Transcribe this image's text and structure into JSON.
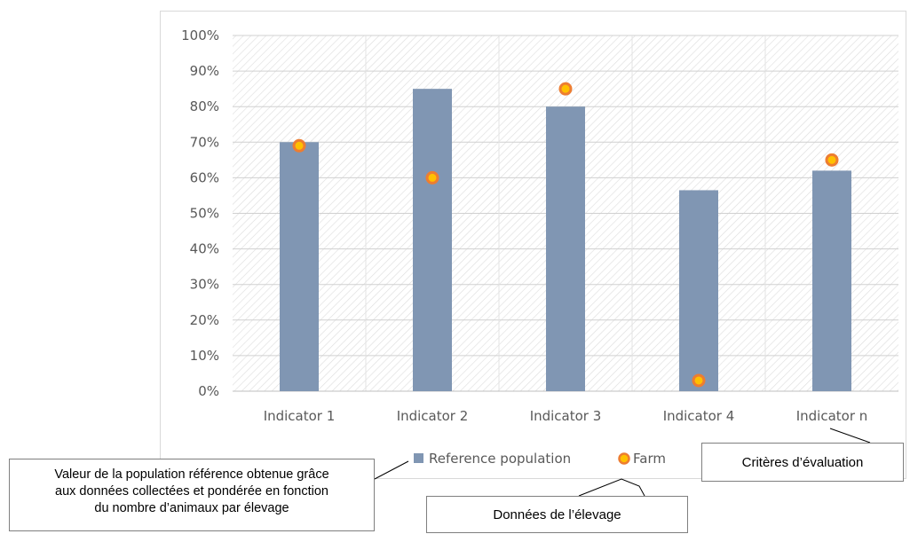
{
  "chart_data": {
    "type": "bar",
    "categories": [
      "Indicator 1",
      "Indicator 2",
      "Indicator 3",
      "Indicator 4",
      "Indicator n"
    ],
    "series": [
      {
        "name": "Reference population",
        "type": "bar",
        "color": "#8096b3",
        "values": [
          70,
          85,
          80,
          56.5,
          62
        ]
      },
      {
        "name": "Farm",
        "type": "scatter",
        "color": "#ed7d31",
        "values": [
          69,
          60,
          85,
          3,
          65
        ]
      }
    ],
    "y_ticks": [
      "0%",
      "10%",
      "20%",
      "30%",
      "40%",
      "50%",
      "60%",
      "70%",
      "80%",
      "90%",
      "100%"
    ],
    "ylim": [
      0,
      100
    ],
    "grid": true,
    "legend": "bottom"
  },
  "callouts": {
    "reference": [
      "Valeur de la population référence obtenue grâce",
      "aux données collectées et pondérée en fonction",
      "du nombre d’animaux par élevage"
    ],
    "criteria": "Critères d’évaluation",
    "farm": "Données de l’élevage"
  }
}
